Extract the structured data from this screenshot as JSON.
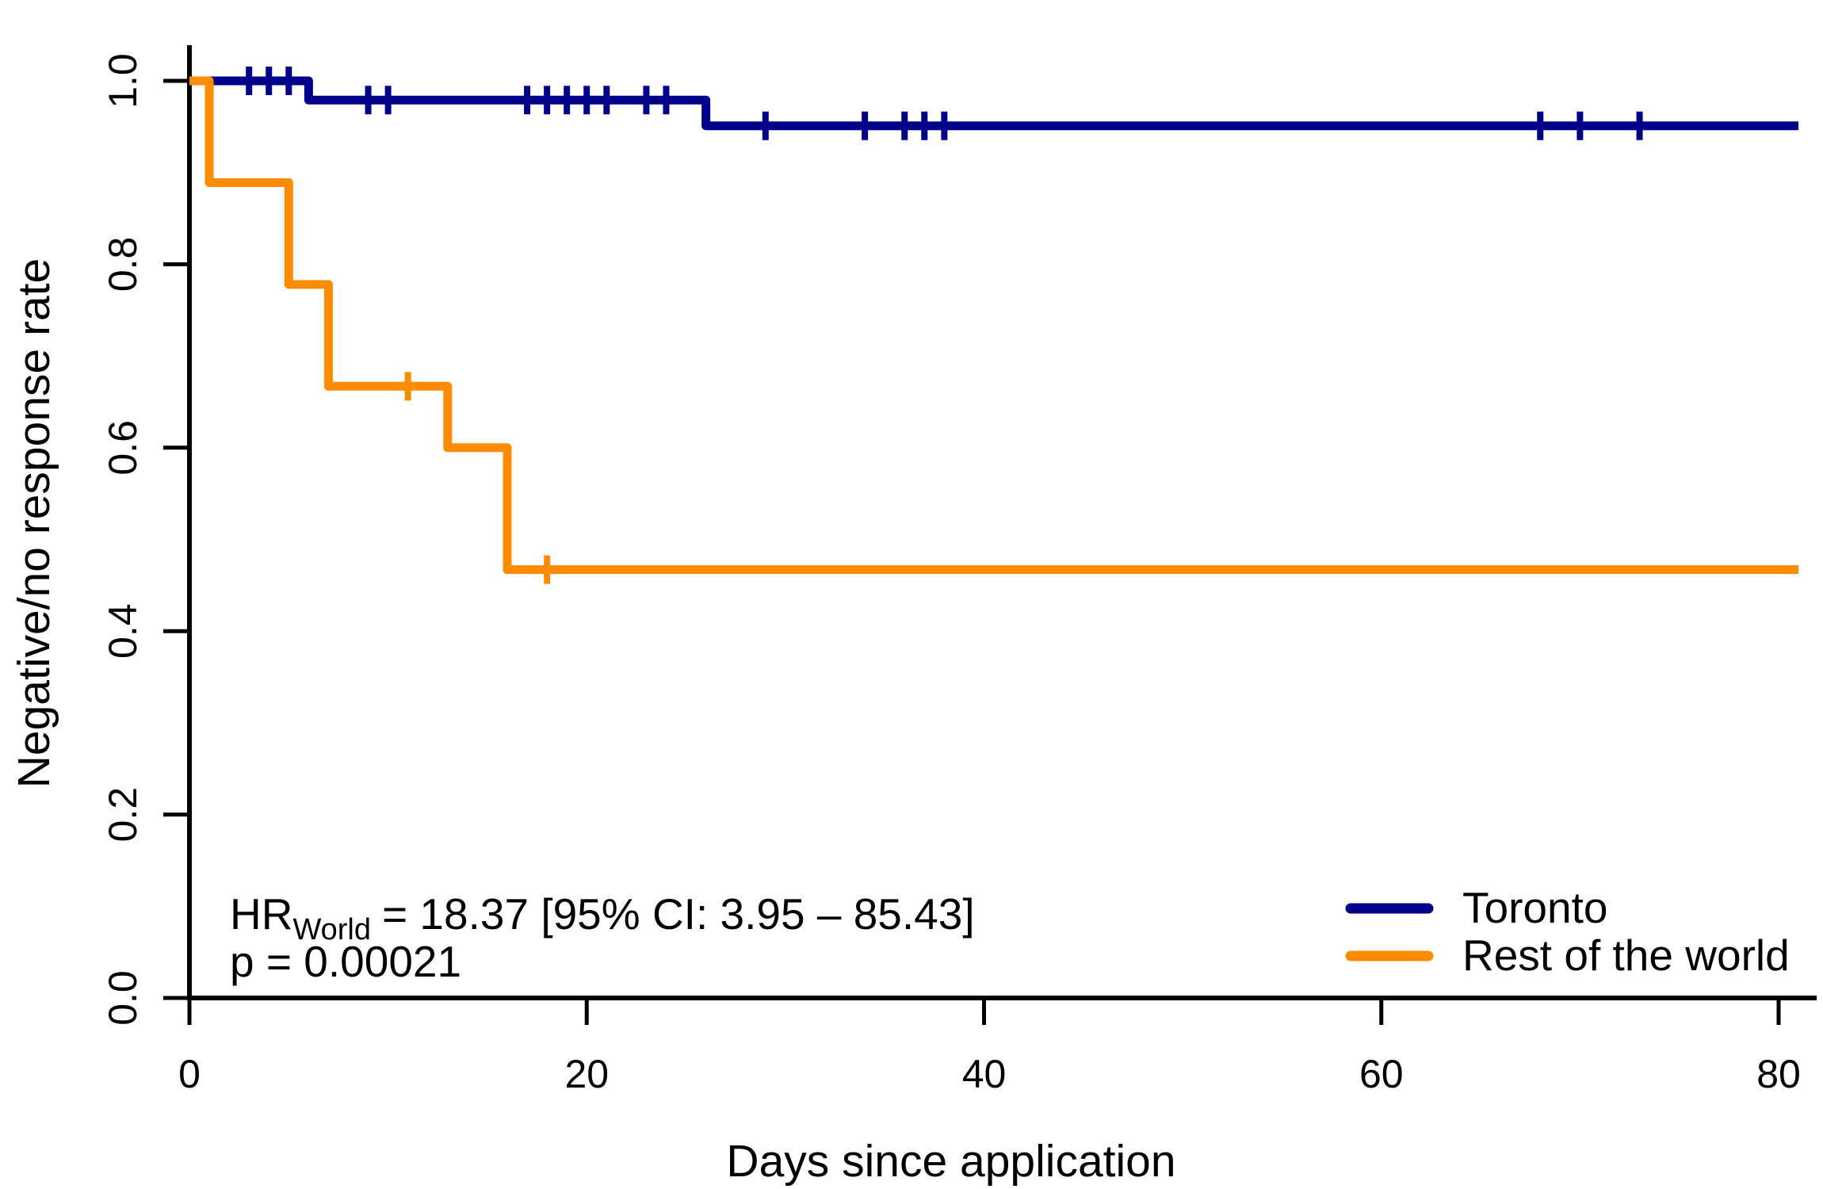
{
  "figure": {
    "background": "#FFFFFF",
    "axis_color": "#000000",
    "text_color": "#000000"
  },
  "chart_data": {
    "type": "line",
    "subtype": "kaplan-meier-step",
    "title": "",
    "xlabel": "Days since application",
    "ylabel": "Negative/no response rate",
    "xlim": [
      0,
      80
    ],
    "ylim": [
      0.0,
      1.0
    ],
    "grid": false,
    "xticks": [
      {
        "label": "0",
        "value": 0
      },
      {
        "label": "20",
        "value": 20
      },
      {
        "label": "40",
        "value": 40
      },
      {
        "label": "60",
        "value": 60
      },
      {
        "label": "80",
        "value": 80
      }
    ],
    "yticks": [
      {
        "label": "0.0",
        "value": 0.0
      },
      {
        "label": "0.2",
        "value": 0.2
      },
      {
        "label": "0.4",
        "value": 0.4
      },
      {
        "label": "0.6",
        "value": 0.6
      },
      {
        "label": "0.8",
        "value": 0.8
      },
      {
        "label": "1.0",
        "value": 1.0
      }
    ],
    "series": [
      {
        "name": "Toronto",
        "color": "#00008B",
        "end_day": 81,
        "steps": [
          {
            "day": 0,
            "value": 1.0
          },
          {
            "day": 6,
            "value": 0.979
          },
          {
            "day": 26,
            "value": 0.951
          }
        ],
        "censored": [
          {
            "day": 3,
            "value": 1.0
          },
          {
            "day": 4,
            "value": 1.0
          },
          {
            "day": 5,
            "value": 1.0
          },
          {
            "day": 9,
            "value": 0.979
          },
          {
            "day": 10,
            "value": 0.979
          },
          {
            "day": 17,
            "value": 0.979
          },
          {
            "day": 18,
            "value": 0.979
          },
          {
            "day": 19,
            "value": 0.979
          },
          {
            "day": 20,
            "value": 0.979
          },
          {
            "day": 21,
            "value": 0.979
          },
          {
            "day": 23,
            "value": 0.979
          },
          {
            "day": 24,
            "value": 0.979
          },
          {
            "day": 29,
            "value": 0.951
          },
          {
            "day": 34,
            "value": 0.951
          },
          {
            "day": 36,
            "value": 0.951
          },
          {
            "day": 37,
            "value": 0.951
          },
          {
            "day": 38,
            "value": 0.951
          },
          {
            "day": 68,
            "value": 0.951
          },
          {
            "day": 70,
            "value": 0.951
          },
          {
            "day": 73,
            "value": 0.951
          }
        ]
      },
      {
        "name": "Rest of the world",
        "color": "#FF8C00",
        "end_day": 81,
        "steps": [
          {
            "day": 0,
            "value": 1.0
          },
          {
            "day": 1,
            "value": 0.889
          },
          {
            "day": 5,
            "value": 0.778
          },
          {
            "day": 7,
            "value": 0.667
          },
          {
            "day": 13,
            "value": 0.6
          },
          {
            "day": 16,
            "value": 0.467
          }
        ],
        "censored": [
          {
            "day": 11,
            "value": 0.667
          },
          {
            "day": 18,
            "value": 0.467
          }
        ]
      }
    ],
    "annotation": {
      "hr_prefix": "HR",
      "hr_subscript": "World",
      "hr_rest": "= 18.37 [95% CI: 3.95 – 85.43]",
      "p_value_line": "p = 0.00021"
    },
    "legend": {
      "position": "bottom-right",
      "entries": [
        {
          "label": "Toronto",
          "color": "#00008B"
        },
        {
          "label": "Rest of the world",
          "color": "#FF8C00"
        }
      ]
    }
  }
}
